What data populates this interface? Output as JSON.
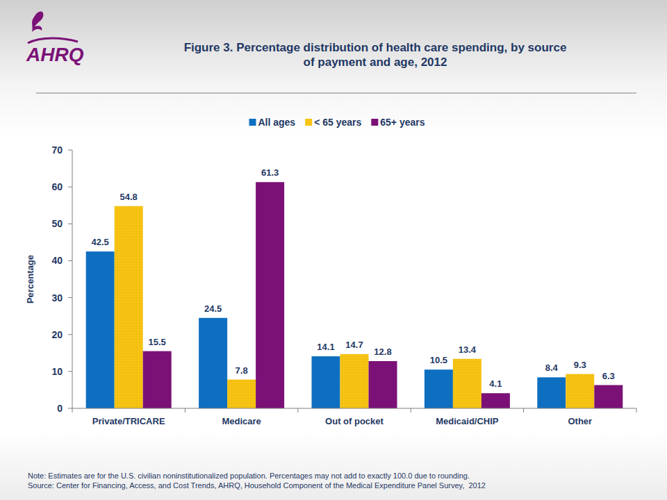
{
  "chart_data": {
    "type": "bar",
    "title": "Figure 3. Percentage distribution of health care spending, by source of payment and age, 2012",
    "logo_text": "AHRQ",
    "ylabel": "Percentage",
    "categories": [
      "Private/TRICARE",
      "Medicare",
      "Out of pocket",
      "Medicaid/CHIP",
      "Other"
    ],
    "series": [
      {
        "name": "All ages",
        "color": "#0e6fc0",
        "values": [
          42.5,
          24.5,
          14.1,
          10.5,
          8.4
        ]
      },
      {
        "name": "< 65 years",
        "color": "#f7c413",
        "values": [
          54.8,
          7.8,
          14.7,
          13.4,
          9.3
        ]
      },
      {
        "name": "65+ years",
        "color": "#7b1177",
        "values": [
          15.5,
          61.3,
          12.8,
          4.1,
          6.3
        ]
      }
    ],
    "ylim": [
      0,
      70
    ],
    "yticks": [
      0,
      10,
      20,
      30,
      40,
      50,
      60,
      70
    ],
    "grid": false,
    "legend": "top",
    "data_labels": true,
    "footnotes": [
      "Note: Estimates are for the U.S. civilian noninstitutionalized population. Percentages may not add to exactly 100.0 due to rounding.",
      "Source: Center for Financing, Access, and Cost Trends, AHRQ, Household Component of the Medical Expenditure Panel Survey,  2012"
    ]
  }
}
